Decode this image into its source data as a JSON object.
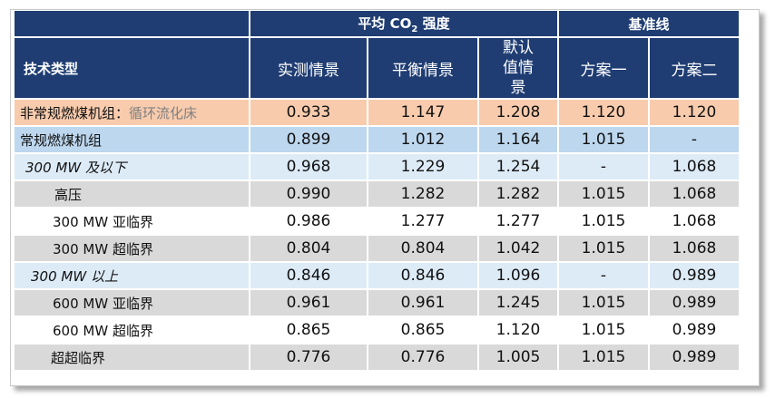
{
  "header": {
    "group_avg": "平均 CO",
    "group_avg_sub": "2",
    "group_avg_suffix": " 强度",
    "group_baseline": "基准线",
    "tech_type": "技术类型",
    "columns": [
      "实测情景",
      "平衡情景",
      "默认值情景",
      "方案一",
      "方案二"
    ]
  },
  "rows": [
    {
      "label": "非常规燃煤机组：",
      "label_suffix": "循环流化床",
      "values": [
        "0.933",
        "1.147",
        "1.208",
        "1.120",
        "1.120"
      ]
    },
    {
      "label": "常规燃煤机组",
      "values": [
        "0.899",
        "1.012",
        "1.164",
        "1.015",
        "-"
      ]
    },
    {
      "label": "300 MW 及以下",
      "values": [
        "0.968",
        "1.229",
        "1.254",
        "-",
        "1.068"
      ]
    },
    {
      "label": "高压",
      "values": [
        "0.990",
        "1.282",
        "1.282",
        "1.015",
        "1.068"
      ]
    },
    {
      "label": "300 MW 亚临界",
      "values": [
        "0.986",
        "1.277",
        "1.277",
        "1.015",
        "1.068"
      ]
    },
    {
      "label": "300 MW 超临界",
      "values": [
        "0.804",
        "0.804",
        "1.042",
        "1.015",
        "1.068"
      ]
    },
    {
      "label": "300 MW 以上",
      "values": [
        "0.846",
        "0.846",
        "1.096",
        "-",
        "0.989"
      ]
    },
    {
      "label": "600 MW 亚临界",
      "values": [
        "0.961",
        "0.961",
        "1.245",
        "1.015",
        "0.989"
      ]
    },
    {
      "label": "600 MW 超临界",
      "values": [
        "0.865",
        "0.865",
        "1.120",
        "1.015",
        "0.989"
      ]
    },
    {
      "label": "超超临界",
      "values": [
        "0.776",
        "0.776",
        "1.005",
        "1.015",
        "0.989"
      ]
    }
  ],
  "colors": {
    "header": "#1f3d73",
    "row_orange": "#f8cbad",
    "row_blue": "#bdd7ee",
    "row_light": "#ddebf7",
    "row_gray": "#d9d9d9"
  }
}
